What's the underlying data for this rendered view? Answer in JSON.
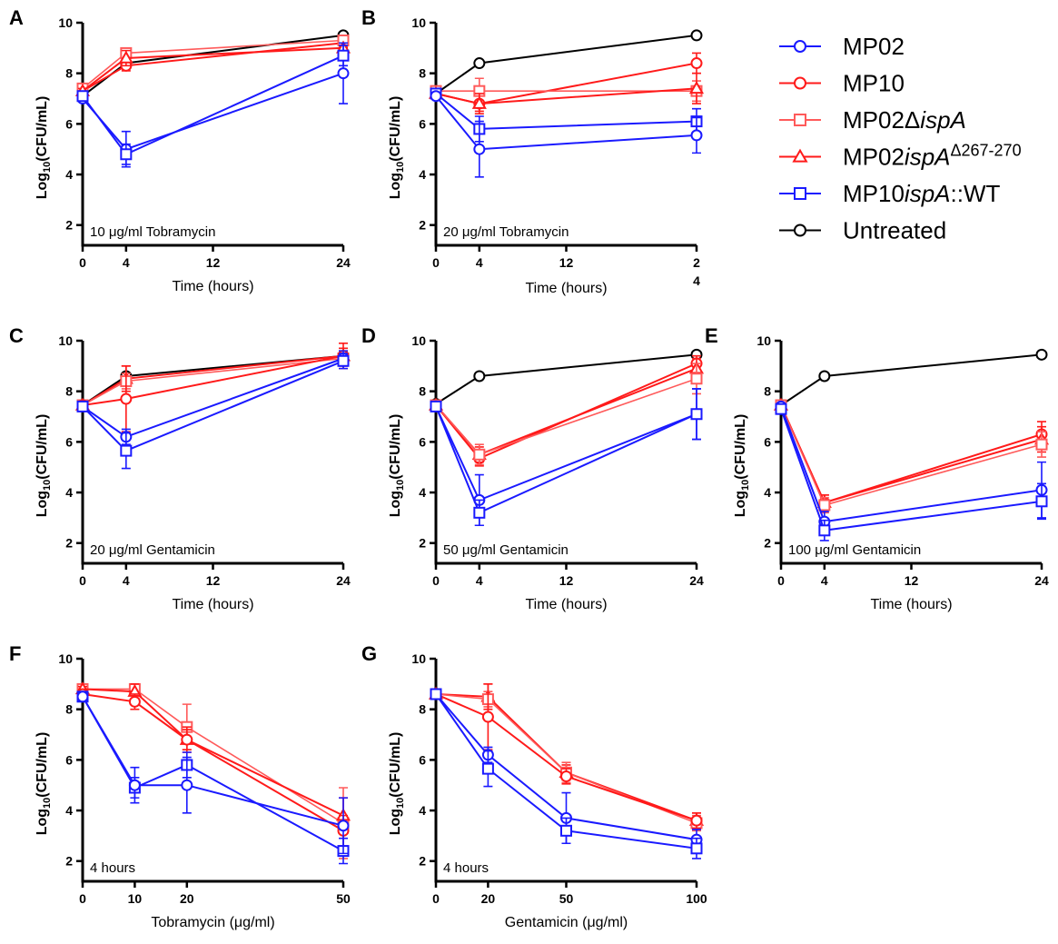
{
  "legend": [
    {
      "key": "MP02",
      "label": "MP02",
      "color": "#1a1aff",
      "marker": "circle",
      "light": false
    },
    {
      "key": "MP10",
      "label": "MP10",
      "color": "#ff1a1a",
      "marker": "circle",
      "light": false
    },
    {
      "key": "dIspA",
      "label": "MP02ΔispA",
      "color": "#ff5a5a",
      "marker": "square",
      "light": true
    },
    {
      "key": "ispA267",
      "label": "MP02ispAΔ267-270",
      "color": "#ff1a1a",
      "marker": "triangle",
      "light": false
    },
    {
      "key": "ispAWT",
      "label": "MP10ispA::WT",
      "color": "#1a1aff",
      "marker": "square",
      "light": false
    },
    {
      "key": "untreated",
      "label": "Untreated",
      "color": "#000000",
      "marker": "circle",
      "light": false
    }
  ],
  "y_axis_label": "Log10(CFU/mL)",
  "chart_data": [
    {
      "type": "line",
      "panel": "A",
      "annotation": "10 μg/ml  Tobramycin",
      "xlabel": "Time (hours)",
      "ylabel": "Log10(CFU/mL)",
      "x_ticks": [
        "0",
        "4",
        "12",
        "24"
      ],
      "y_ticks": [
        "2",
        "4",
        "6",
        "8",
        "10"
      ],
      "xlim": [
        0,
        24
      ],
      "ylim": [
        1.2,
        10
      ],
      "series": [
        {
          "key": "untreated",
          "x": [
            0,
            4,
            24
          ],
          "y": [
            7.1,
            8.4,
            9.5
          ],
          "err": [
            0,
            0,
            0
          ]
        },
        {
          "key": "MP10",
          "x": [
            0,
            4,
            24
          ],
          "y": [
            7.3,
            8.3,
            9.2
          ],
          "err": [
            0.1,
            0.2,
            0.2
          ]
        },
        {
          "key": "dIspA",
          "x": [
            0,
            4,
            24
          ],
          "y": [
            7.4,
            8.8,
            9.3
          ],
          "err": [
            0.1,
            0.2,
            0.2
          ]
        },
        {
          "key": "ispA267",
          "x": [
            0,
            4,
            24
          ],
          "y": [
            7.3,
            8.6,
            9.0
          ],
          "err": [
            0.1,
            0.3,
            0.2
          ]
        },
        {
          "key": "MP02",
          "x": [
            0,
            4,
            24
          ],
          "y": [
            7.0,
            5.0,
            8.0
          ],
          "err": [
            0.1,
            0.7,
            1.2
          ]
        },
        {
          "key": "ispAWT",
          "x": [
            0,
            4,
            24
          ],
          "y": [
            7.1,
            4.8,
            8.7
          ],
          "err": [
            0.1,
            0.4,
            0.4
          ]
        }
      ]
    },
    {
      "type": "line",
      "panel": "B",
      "annotation": "20 μg/ml Tobramycin",
      "xlabel": "Time (hours)",
      "ylabel": "Log10(CFU/mL)",
      "x_ticks": [
        "0",
        "4",
        "12",
        "2\n4"
      ],
      "y_ticks": [
        "2",
        "4",
        "6",
        "8",
        "10"
      ],
      "xlim": [
        0,
        24
      ],
      "ylim": [
        1.2,
        10
      ],
      "series": [
        {
          "key": "untreated",
          "x": [
            0,
            4,
            24
          ],
          "y": [
            7.2,
            8.4,
            9.5
          ],
          "err": [
            0,
            0,
            0
          ]
        },
        {
          "key": "MP10",
          "x": [
            0,
            4,
            24
          ],
          "y": [
            7.2,
            6.8,
            8.4
          ],
          "err": [
            0.1,
            0.3,
            0.4
          ]
        },
        {
          "key": "dIspA",
          "x": [
            0,
            4,
            24
          ],
          "y": [
            7.3,
            7.3,
            7.3
          ],
          "err": [
            0.1,
            0.5,
            0.4
          ]
        },
        {
          "key": "ispA267",
          "x": [
            0,
            4,
            24
          ],
          "y": [
            7.2,
            6.8,
            7.4
          ],
          "err": [
            0.1,
            0.4,
            0.6
          ]
        },
        {
          "key": "ispAWT",
          "x": [
            0,
            4,
            24
          ],
          "y": [
            7.2,
            5.8,
            6.1
          ],
          "err": [
            0.1,
            0.5,
            0.5
          ]
        },
        {
          "key": "MP02",
          "x": [
            0,
            4,
            24
          ],
          "y": [
            7.1,
            5.0,
            5.55
          ],
          "err": [
            0.1,
            1.1,
            0.7
          ]
        }
      ]
    },
    {
      "type": "line",
      "panel": "C",
      "annotation": "20 μg/ml Gentamicin",
      "xlabel": "Time (hours)",
      "ylabel": "Log10(CFU/mL)",
      "x_ticks": [
        "0",
        "4",
        "12",
        "24"
      ],
      "y_ticks": [
        "2",
        "4",
        "6",
        "8",
        "10"
      ],
      "xlim": [
        0,
        24
      ],
      "ylim": [
        1.2,
        10
      ],
      "series": [
        {
          "key": "untreated",
          "x": [
            0,
            4,
            24
          ],
          "y": [
            7.45,
            8.6,
            9.4
          ],
          "err": [
            0,
            0,
            0
          ]
        },
        {
          "key": "ispA267",
          "x": [
            0,
            4,
            24
          ],
          "y": [
            7.45,
            8.5,
            9.4
          ],
          "err": [
            0.1,
            0.5,
            0.3
          ]
        },
        {
          "key": "dIspA",
          "x": [
            0,
            4,
            24
          ],
          "y": [
            7.45,
            8.4,
            9.3
          ],
          "err": [
            0.1,
            0.3,
            0.3
          ]
        },
        {
          "key": "MP10",
          "x": [
            0,
            4,
            24
          ],
          "y": [
            7.45,
            7.7,
            9.4
          ],
          "err": [
            0.1,
            1.3,
            0.5
          ]
        },
        {
          "key": "MP02",
          "x": [
            0,
            4,
            24
          ],
          "y": [
            7.4,
            6.2,
            9.3
          ],
          "err": [
            0.1,
            0.3,
            0.3
          ]
        },
        {
          "key": "ispAWT",
          "x": [
            0,
            4,
            24
          ],
          "y": [
            7.4,
            5.65,
            9.2
          ],
          "err": [
            0.1,
            0.7,
            0.3
          ]
        }
      ]
    },
    {
      "type": "line",
      "panel": "D",
      "annotation": "50 μg/ml Gentamicin",
      "xlabel": "Time (hours)",
      "ylabel": "Log10(CFU/mL)",
      "x_ticks": [
        "0",
        "4",
        "12",
        "24"
      ],
      "y_ticks": [
        "2",
        "4",
        "6",
        "8",
        "10"
      ],
      "xlim": [
        0,
        24
      ],
      "ylim": [
        1.2,
        10
      ],
      "series": [
        {
          "key": "untreated",
          "x": [
            0,
            4,
            24
          ],
          "y": [
            7.5,
            8.6,
            9.45
          ],
          "err": [
            0,
            0,
            0
          ]
        },
        {
          "key": "MP10",
          "x": [
            0,
            4,
            24
          ],
          "y": [
            7.45,
            5.35,
            9.1
          ],
          "err": [
            0.1,
            0.3,
            0.3
          ]
        },
        {
          "key": "ispA267",
          "x": [
            0,
            4,
            24
          ],
          "y": [
            7.45,
            5.5,
            8.9
          ],
          "err": [
            0.1,
            0.3,
            0.4
          ]
        },
        {
          "key": "dIspA",
          "x": [
            0,
            4,
            24
          ],
          "y": [
            7.45,
            5.5,
            8.5
          ],
          "err": [
            0.1,
            0.4,
            0.6
          ]
        },
        {
          "key": "MP02",
          "x": [
            0,
            4,
            24
          ],
          "y": [
            7.4,
            3.7,
            7.1
          ],
          "err": [
            0.1,
            1.0,
            1.0
          ]
        },
        {
          "key": "ispAWT",
          "x": [
            0,
            4,
            24
          ],
          "y": [
            7.4,
            3.2,
            7.1
          ],
          "err": [
            0.1,
            0.5,
            1.0
          ]
        }
      ]
    },
    {
      "type": "line",
      "panel": "E",
      "annotation": "100 μg/ml Gentamicin",
      "xlabel": "Time (hours)",
      "ylabel": "Log10(CFU/mL)",
      "x_ticks": [
        "0",
        "4",
        "12",
        "24"
      ],
      "y_ticks": [
        "2",
        "4",
        "6",
        "8",
        "10"
      ],
      "xlim": [
        0,
        24
      ],
      "ylim": [
        1.2,
        10
      ],
      "series": [
        {
          "key": "untreated",
          "x": [
            0,
            4,
            24
          ],
          "y": [
            7.45,
            8.6,
            9.45
          ],
          "err": [
            0,
            0,
            0
          ]
        },
        {
          "key": "MP10",
          "x": [
            0,
            4,
            24
          ],
          "y": [
            7.45,
            3.6,
            6.3
          ],
          "err": [
            0.1,
            0.3,
            0.5
          ]
        },
        {
          "key": "ispA267",
          "x": [
            0,
            4,
            24
          ],
          "y": [
            7.45,
            3.6,
            6.1
          ],
          "err": [
            0.1,
            0.3,
            0.5
          ]
        },
        {
          "key": "dIspA",
          "x": [
            0,
            4,
            24
          ],
          "y": [
            7.45,
            3.5,
            5.9
          ],
          "err": [
            0.1,
            0.3,
            0.5
          ]
        },
        {
          "key": "MP02",
          "x": [
            0,
            4,
            24
          ],
          "y": [
            7.4,
            2.85,
            4.1
          ],
          "err": [
            0.1,
            0.4,
            1.1
          ]
        },
        {
          "key": "ispAWT",
          "x": [
            0,
            4,
            24
          ],
          "y": [
            7.3,
            2.5,
            3.65
          ],
          "err": [
            0.1,
            0.4,
            0.7
          ]
        }
      ]
    },
    {
      "type": "line",
      "panel": "F",
      "annotation": "4 hours",
      "xlabel": "Tobramycin (μg/ml)",
      "ylabel": "Log10(CFU/mL)",
      "x_ticks": [
        "0",
        "10",
        "20",
        "50"
      ],
      "y_ticks": [
        "2",
        "4",
        "6",
        "8",
        "10"
      ],
      "xlim": [
        0,
        50
      ],
      "ylim": [
        1.2,
        10
      ],
      "series": [
        {
          "key": "dIspA",
          "x": [
            0,
            10,
            20,
            50
          ],
          "y": [
            8.8,
            8.8,
            7.3,
            3.5
          ],
          "err": [
            0.1,
            0.2,
            0.9,
            1.4
          ]
        },
        {
          "key": "ispA267",
          "x": [
            0,
            10,
            20,
            50
          ],
          "y": [
            8.8,
            8.7,
            6.8,
            3.8
          ],
          "err": [
            0.1,
            0.3,
            0.5,
            0.7
          ]
        },
        {
          "key": "MP10",
          "x": [
            0,
            10,
            20,
            50
          ],
          "y": [
            8.6,
            8.3,
            6.8,
            3.2
          ],
          "err": [
            0.1,
            0.3,
            0.4,
            0.6
          ]
        },
        {
          "key": "ispAWT",
          "x": [
            0,
            10,
            20,
            50
          ],
          "y": [
            8.5,
            4.9,
            5.8,
            2.4
          ],
          "err": [
            0.1,
            0.4,
            0.5,
            0.5
          ]
        },
        {
          "key": "MP02",
          "x": [
            0,
            10,
            20,
            50
          ],
          "y": [
            8.5,
            5.0,
            5.0,
            3.4
          ],
          "err": [
            0.1,
            0.7,
            1.1,
            1.1
          ]
        }
      ]
    },
    {
      "type": "line",
      "panel": "G",
      "annotation": "4 hours",
      "xlabel": "Gentamicin (μg/ml)",
      "ylabel": "Log10(CFU/mL)",
      "x_ticks": [
        "0",
        "20",
        "50",
        "100"
      ],
      "y_ticks": [
        "2",
        "4",
        "6",
        "8",
        "10"
      ],
      "xlim": [
        0,
        100
      ],
      "ylim": [
        1.2,
        10
      ],
      "series": [
        {
          "key": "ispA267",
          "x": [
            0,
            20,
            50,
            100
          ],
          "y": [
            8.6,
            8.5,
            5.5,
            3.6
          ],
          "err": [
            0.1,
            0.5,
            0.3,
            0.3
          ]
        },
        {
          "key": "dIspA",
          "x": [
            0,
            20,
            50,
            100
          ],
          "y": [
            8.6,
            8.4,
            5.5,
            3.5
          ],
          "err": [
            0.1,
            0.3,
            0.4,
            0.3
          ]
        },
        {
          "key": "MP10",
          "x": [
            0,
            20,
            50,
            100
          ],
          "y": [
            8.6,
            7.7,
            5.35,
            3.6
          ],
          "err": [
            0.1,
            1.3,
            0.3,
            0.3
          ]
        },
        {
          "key": "MP02",
          "x": [
            0,
            20,
            50,
            100
          ],
          "y": [
            8.6,
            6.2,
            3.7,
            2.85
          ],
          "err": [
            0.1,
            0.3,
            1.0,
            0.4
          ]
        },
        {
          "key": "ispAWT",
          "x": [
            0,
            20,
            50,
            100
          ],
          "y": [
            8.6,
            5.65,
            3.2,
            2.5
          ],
          "err": [
            0.1,
            0.7,
            0.5,
            0.4
          ]
        }
      ]
    }
  ]
}
